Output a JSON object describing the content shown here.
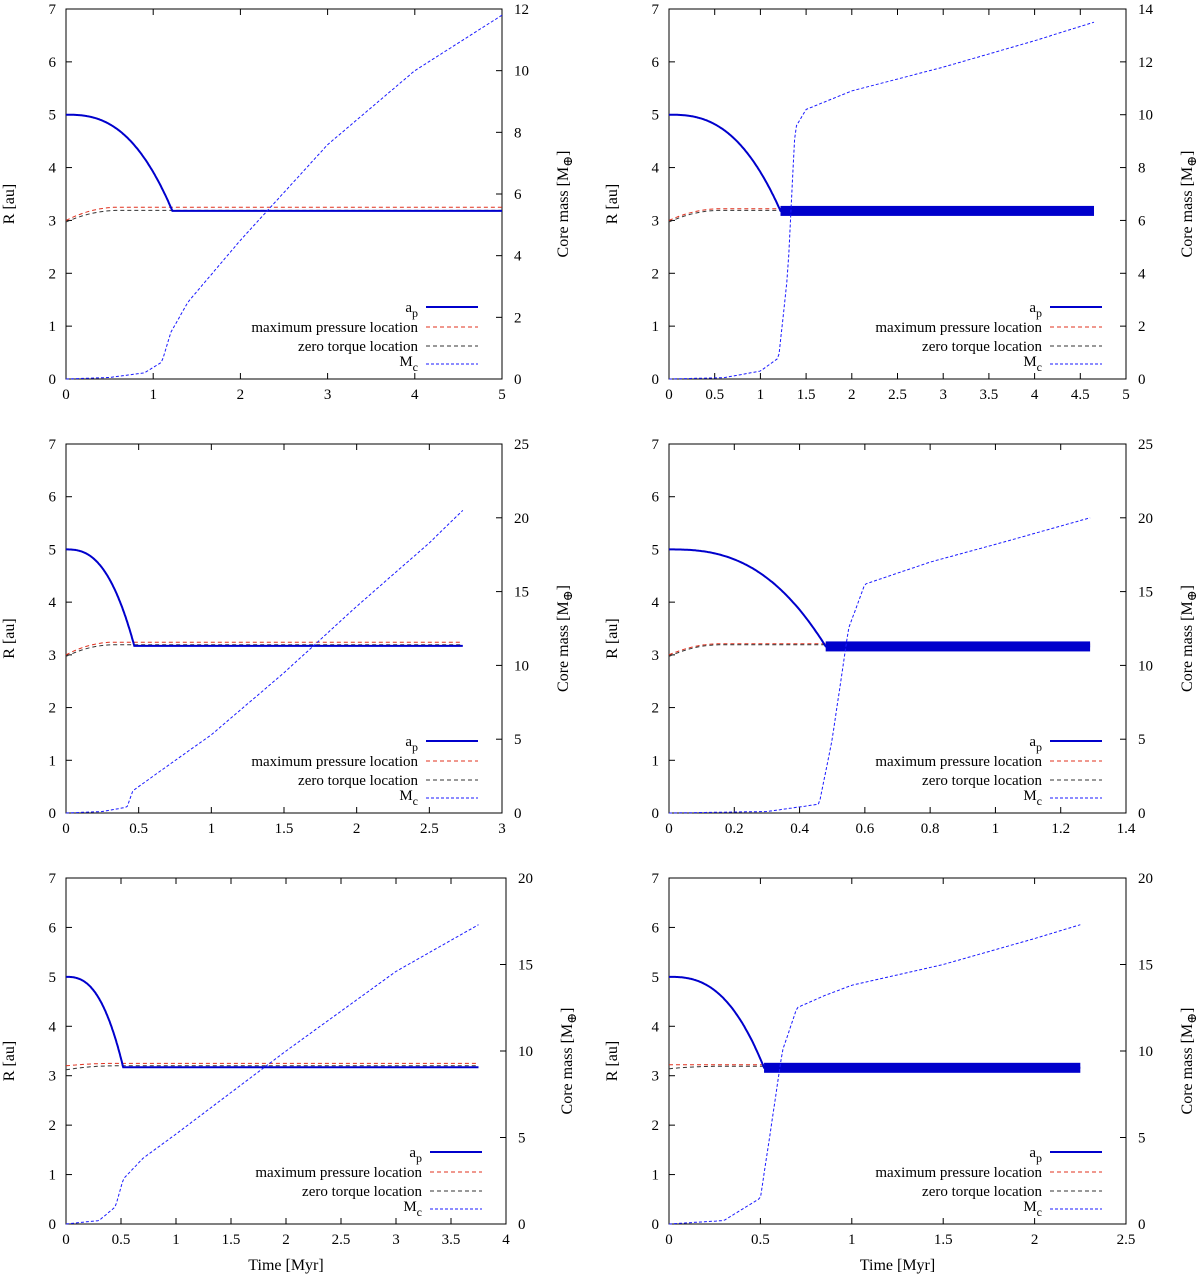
{
  "figure_labels": {
    "ylabel_left": "R [au]",
    "ylabel_right_prefix": "Core mass [M",
    "ylabel_right_symbol": "⊕",
    "ylabel_right_suffix": "]",
    "xlabel": "Time [Myr]"
  },
  "legend": {
    "ap_base": "a",
    "ap_sub": "p",
    "pressure": "maximum pressure location",
    "torque": "zero torque location",
    "mc_base": "M",
    "mc_sub": "c"
  },
  "colors": {
    "ap": "#0000cc",
    "pressure": "#e0301e",
    "torque": "#333333",
    "mc": "#1a1aff"
  },
  "chart_data": [
    {
      "type": "line",
      "panel": "top-left",
      "xlim": [
        0,
        5
      ],
      "xticks": [
        "0",
        "1",
        "2",
        "3",
        "4",
        "5"
      ],
      "ylim": [
        0,
        7
      ],
      "yticks": [
        "0",
        "1",
        "2",
        "3",
        "4",
        "5",
        "6",
        "7"
      ],
      "y2lim": [
        0,
        12
      ],
      "y2ticks": [
        "0",
        "2",
        "4",
        "6",
        "8",
        "10",
        "12"
      ],
      "t_end": 5,
      "t_migr": 1.22,
      "ap_final": 3.18,
      "p_final": 3.25,
      "z_final": 3.19,
      "p_start": 3.0,
      "z_start": 2.97,
      "oscillating": false,
      "mc_points": [
        [
          0,
          0
        ],
        [
          0.5,
          0.05
        ],
        [
          0.9,
          0.2
        ],
        [
          1.1,
          0.55
        ],
        [
          1.2,
          1.5
        ],
        [
          1.4,
          2.5
        ],
        [
          2,
          4.5
        ],
        [
          3,
          7.6
        ],
        [
          4,
          10.0
        ],
        [
          5,
          11.8
        ]
      ],
      "show_xlabel": false
    },
    {
      "type": "line",
      "panel": "top-right",
      "xlim": [
        0,
        5
      ],
      "xticks": [
        "0",
        "0.5",
        "1",
        "1.5",
        "2",
        "2.5",
        "3",
        "3.5",
        "4",
        "4.5",
        "5"
      ],
      "ylim": [
        0,
        7
      ],
      "yticks": [
        "0",
        "1",
        "2",
        "3",
        "4",
        "5",
        "6",
        "7"
      ],
      "y2lim": [
        0,
        14
      ],
      "y2ticks": [
        "0",
        "2",
        "4",
        "6",
        "8",
        "10",
        "12",
        "14"
      ],
      "t_end": 4.65,
      "t_migr": 1.22,
      "ap_final": 3.18,
      "p_final": 3.22,
      "z_final": 3.19,
      "p_start": 3.0,
      "z_start": 2.97,
      "oscillating": true,
      "mc_points": [
        [
          0,
          0
        ],
        [
          0.6,
          0.05
        ],
        [
          1.0,
          0.3
        ],
        [
          1.2,
          0.8
        ],
        [
          1.3,
          4.0
        ],
        [
          1.38,
          9.5
        ],
        [
          1.5,
          10.2
        ],
        [
          2,
          10.9
        ],
        [
          3,
          11.8
        ],
        [
          4,
          12.8
        ],
        [
          4.65,
          13.5
        ]
      ],
      "show_xlabel": false
    },
    {
      "type": "line",
      "panel": "middle-left",
      "xlim": [
        0,
        3
      ],
      "xticks": [
        "0",
        "0.5",
        "1",
        "1.5",
        "2",
        "2.5",
        "3"
      ],
      "ylim": [
        0,
        7
      ],
      "yticks": [
        "0",
        "1",
        "2",
        "3",
        "4",
        "5",
        "6",
        "7"
      ],
      "y2lim": [
        0,
        25
      ],
      "y2ticks": [
        "0",
        "5",
        "10",
        "15",
        "20",
        "25"
      ],
      "t_end": 2.73,
      "t_migr": 0.47,
      "ap_final": 3.17,
      "p_final": 3.24,
      "z_final": 3.19,
      "p_start": 3.0,
      "z_start": 2.97,
      "oscillating": false,
      "mc_points": [
        [
          0,
          0
        ],
        [
          0.25,
          0.1
        ],
        [
          0.42,
          0.4
        ],
        [
          0.46,
          1.5
        ],
        [
          0.6,
          2.5
        ],
        [
          1.0,
          5.3
        ],
        [
          1.5,
          9.5
        ],
        [
          2.0,
          14.0
        ],
        [
          2.5,
          18.3
        ],
        [
          2.73,
          20.5
        ]
      ],
      "show_xlabel": false
    },
    {
      "type": "line",
      "panel": "middle-right",
      "xlim": [
        0,
        1.4
      ],
      "xticks": [
        "0",
        "0.2",
        "0.4",
        "0.6",
        "0.8",
        "1",
        "1.2",
        "1.4"
      ],
      "ylim": [
        0,
        7
      ],
      "yticks": [
        "0",
        "1",
        "2",
        "3",
        "4",
        "5",
        "6",
        "7"
      ],
      "y2lim": [
        0,
        25
      ],
      "y2ticks": [
        "0",
        "5",
        "10",
        "15",
        "20",
        "25"
      ],
      "t_end": 1.29,
      "t_migr": 0.48,
      "ap_final": 3.16,
      "p_final": 3.21,
      "z_final": 3.19,
      "p_start": 3.0,
      "z_start": 2.97,
      "oscillating": true,
      "mc_points": [
        [
          0,
          0
        ],
        [
          0.3,
          0.1
        ],
        [
          0.46,
          0.6
        ],
        [
          0.5,
          5.0
        ],
        [
          0.55,
          12.5
        ],
        [
          0.6,
          15.5
        ],
        [
          0.8,
          17.0
        ],
        [
          1.0,
          18.2
        ],
        [
          1.29,
          20.0
        ]
      ],
      "show_xlabel": false
    },
    {
      "type": "line",
      "panel": "bottom-left",
      "xlim": [
        0,
        4
      ],
      "xticks": [
        "0",
        "0.5",
        "1",
        "1.5",
        "2",
        "2.5",
        "3",
        "3.5",
        "4"
      ],
      "ylim": [
        0,
        7
      ],
      "yticks": [
        "0",
        "1",
        "2",
        "3",
        "4",
        "5",
        "6",
        "7"
      ],
      "y2lim": [
        0,
        20
      ],
      "y2ticks": [
        "0",
        "5",
        "10",
        "15",
        "20"
      ],
      "t_end": 3.75,
      "t_migr": 0.52,
      "ap_final": 3.17,
      "p_final": 3.25,
      "z_final": 3.2,
      "p_start": 3.2,
      "z_start": 3.12,
      "oscillating": false,
      "mc_points": [
        [
          0,
          0
        ],
        [
          0.3,
          0.2
        ],
        [
          0.45,
          1.0
        ],
        [
          0.52,
          2.6
        ],
        [
          0.7,
          3.8
        ],
        [
          1.0,
          5.2
        ],
        [
          1.5,
          7.6
        ],
        [
          2.0,
          10.0
        ],
        [
          2.5,
          12.3
        ],
        [
          3.0,
          14.6
        ],
        [
          3.75,
          17.3
        ]
      ],
      "show_xlabel": true
    },
    {
      "type": "line",
      "panel": "bottom-right",
      "xlim": [
        0,
        2.5
      ],
      "xticks": [
        "0",
        "0.5",
        "1",
        "1.5",
        "2",
        "2.5"
      ],
      "ylim": [
        0,
        7
      ],
      "yticks": [
        "0",
        "1",
        "2",
        "3",
        "4",
        "5",
        "6",
        "7"
      ],
      "y2lim": [
        0,
        20
      ],
      "y2ticks": [
        "0",
        "5",
        "10",
        "15",
        "20"
      ],
      "t_end": 2.25,
      "t_migr": 0.52,
      "ap_final": 3.16,
      "p_final": 3.22,
      "z_final": 3.19,
      "p_start": 3.22,
      "z_start": 3.14,
      "oscillating": true,
      "mc_points": [
        [
          0,
          0
        ],
        [
          0.3,
          0.2
        ],
        [
          0.5,
          1.5
        ],
        [
          0.55,
          5.0
        ],
        [
          0.62,
          10.0
        ],
        [
          0.7,
          12.5
        ],
        [
          0.85,
          13.2
        ],
        [
          1.0,
          13.8
        ],
        [
          1.5,
          15.0
        ],
        [
          2.0,
          16.5
        ],
        [
          2.25,
          17.3
        ]
      ],
      "show_xlabel": true
    }
  ]
}
